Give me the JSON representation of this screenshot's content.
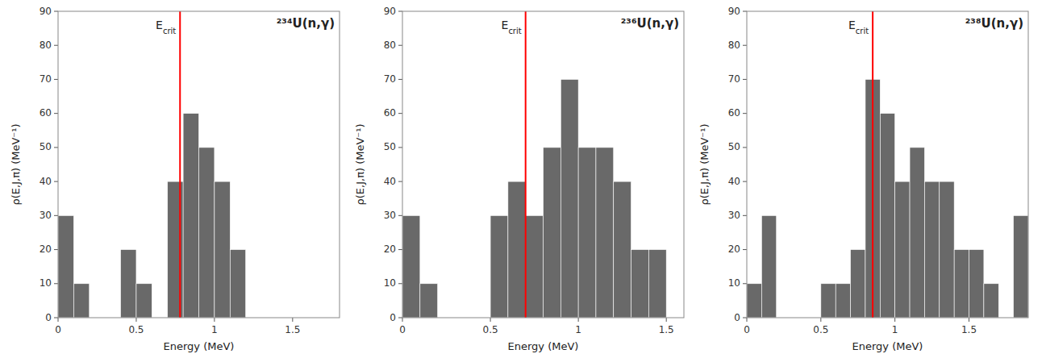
{
  "chart_data": [
    {
      "type": "histogram",
      "title": "²³⁴U(n,γ)",
      "xlabel": "Energy (MeV)",
      "ylabel": "ρ(E,J,π) (MeV⁻¹)",
      "bins": [
        0.0,
        0.1,
        0.2,
        0.3,
        0.4,
        0.5,
        0.6,
        0.7,
        0.8,
        0.9,
        1.0,
        1.1,
        1.2,
        1.3,
        1.4,
        1.5,
        1.6,
        1.7,
        1.8
      ],
      "values": [
        30,
        10,
        0,
        0,
        20,
        10,
        0,
        40,
        60,
        50,
        40,
        20,
        0,
        0,
        0,
        0,
        0,
        0
      ],
      "color": "#696969",
      "ecrit": {
        "value": 0.78,
        "label": "Ecrit",
        "color": "red"
      },
      "xlim": [
        0,
        1.8
      ],
      "xticks": [
        0,
        0.5,
        1,
        1.5
      ],
      "ylim": [
        0,
        90
      ],
      "yticks": [
        0,
        10,
        20,
        30,
        40,
        50,
        60,
        70,
        80,
        90
      ],
      "grid": false
    },
    {
      "type": "histogram",
      "title": "²³⁶U(n,γ)",
      "xlabel": "Energy (MeV)",
      "ylabel": "ρ(E,J,π) (MeV⁻¹)",
      "bins": [
        0.0,
        0.1,
        0.2,
        0.3,
        0.4,
        0.5,
        0.6,
        0.7,
        0.8,
        0.9,
        1.0,
        1.1,
        1.2,
        1.3,
        1.4,
        1.5,
        1.6
      ],
      "values": [
        30,
        10,
        0,
        0,
        0,
        30,
        40,
        30,
        50,
        70,
        50,
        50,
        40,
        20,
        20,
        0
      ],
      "color": "#696969",
      "ecrit": {
        "value": 0.7,
        "label": "Ecrit",
        "color": "red"
      },
      "xlim": [
        0,
        1.6
      ],
      "xticks": [
        0,
        0.5,
        1,
        1.5
      ],
      "ylim": [
        0,
        90
      ],
      "yticks": [
        0,
        10,
        20,
        30,
        40,
        50,
        60,
        70,
        80,
        90
      ],
      "grid": false
    },
    {
      "type": "histogram",
      "title": "²³⁸U(n,γ)",
      "xlabel": "Energy (MeV)",
      "ylabel": "ρ(E,J,π) (MeV⁻¹)",
      "bins": [
        0.0,
        0.1,
        0.2,
        0.3,
        0.4,
        0.5,
        0.6,
        0.7,
        0.8,
        0.9,
        1.0,
        1.1,
        1.2,
        1.3,
        1.4,
        1.5,
        1.6,
        1.7,
        1.8,
        1.9
      ],
      "values": [
        10,
        30,
        0,
        0,
        0,
        10,
        10,
        20,
        70,
        60,
        40,
        50,
        40,
        40,
        20,
        20,
        10,
        0,
        30
      ],
      "color": "#696969",
      "ecrit": {
        "value": 0.85,
        "label": "Ecrit",
        "color": "red"
      },
      "xlim": [
        0,
        1.9
      ],
      "xticks": [
        0,
        0.5,
        1,
        1.5
      ],
      "ylim": [
        0,
        90
      ],
      "yticks": [
        0,
        10,
        20,
        30,
        40,
        50,
        60,
        70,
        80,
        90
      ],
      "grid": false
    }
  ]
}
